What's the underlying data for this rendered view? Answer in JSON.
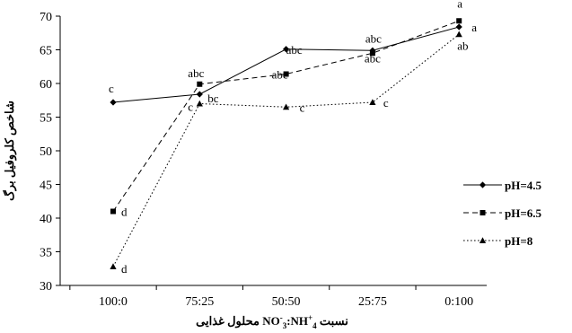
{
  "chart_data": {
    "type": "line",
    "categories": [
      "100:0",
      "75:25",
      "50:50",
      "25:75",
      "0:100"
    ],
    "ylim": [
      30,
      70
    ],
    "yticks": [
      30,
      35,
      40,
      45,
      50,
      55,
      60,
      65,
      70
    ],
    "ylabel": "شاخص کلروفیل برگ",
    "xlabel": {
      "prefix": "نسبت ",
      "text": "NO",
      "sup1": "-",
      "sub1": "3",
      "mid": ":NH",
      "sup2": "+",
      "sub2": "4",
      "suffix": "  محلول غذایی"
    },
    "legend_position": "right",
    "series": [
      {
        "name": "pH=4.5",
        "values": [
          57.2,
          58.4,
          65.1,
          64.9,
          68.4
        ],
        "marker": "diamond",
        "dash": "solid",
        "letters": [
          "c",
          "bc",
          "abc",
          "abc",
          "a"
        ]
      },
      {
        "name": "pH=6.5",
        "values": [
          41.0,
          59.9,
          61.4,
          64.5,
          69.3
        ],
        "marker": "square",
        "dash": "dashed",
        "letters": [
          "d",
          "abc",
          "abc",
          "abc",
          "a"
        ]
      },
      {
        "name": "pH=8",
        "values": [
          32.8,
          57.0,
          56.5,
          57.2,
          67.3
        ],
        "marker": "triangle",
        "dash": "dotted",
        "letters": [
          "d",
          "c",
          "c",
          "c",
          "ab"
        ]
      }
    ]
  }
}
